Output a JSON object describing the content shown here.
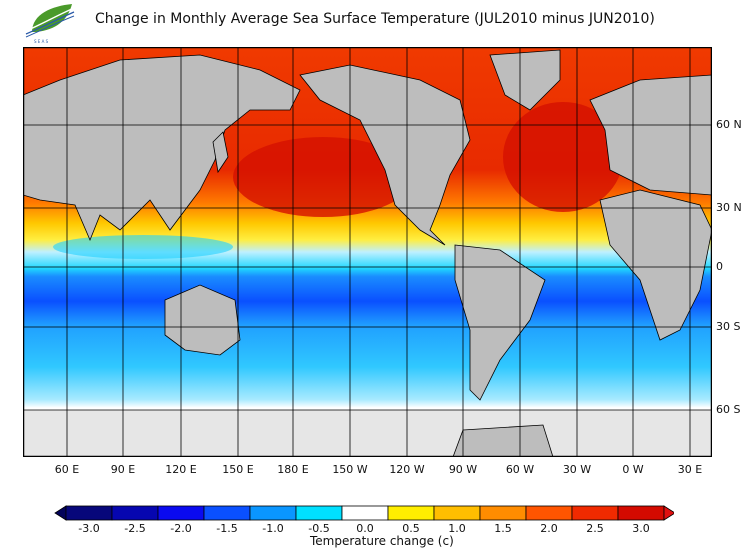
{
  "title": "Change in Monthly Average Sea Surface Temperature (JUL2010 minus JUN2010)",
  "logo": {
    "icon": "leaf-wave-logo",
    "text": "SEAS BAIT"
  },
  "map": {
    "lat_labels": [
      "60 N",
      "30 N",
      "0",
      "30 S",
      "60 S"
    ],
    "lon_labels": [
      "60 E",
      "90 E",
      "120 E",
      "150 E",
      "180 E",
      "150 W",
      "120 W",
      "90 W",
      "60 W",
      "30 W",
      "0 W",
      "30 E"
    ],
    "land_color": "#bdbdbd",
    "ice_color": "#e6e6e6"
  },
  "colorbar": {
    "title": "Temperature change  (c)",
    "ticks": [
      "-3.0",
      "-2.5",
      "-2.0",
      "-1.5",
      "-1.0",
      "-0.5",
      "0.0",
      "0.5",
      "1.0",
      "1.5",
      "2.0",
      "2.5",
      "3.0"
    ],
    "colors": [
      "#07077a",
      "#0606b0",
      "#0a0af0",
      "#0a50ff",
      "#0a96ff",
      "#00e0ff",
      "#ffffff",
      "#ffee00",
      "#ffbe00",
      "#ff8c00",
      "#ff5500",
      "#f02a00",
      "#d40a00"
    ],
    "under_color": "#03035a",
    "over_color": "#e01010"
  }
}
